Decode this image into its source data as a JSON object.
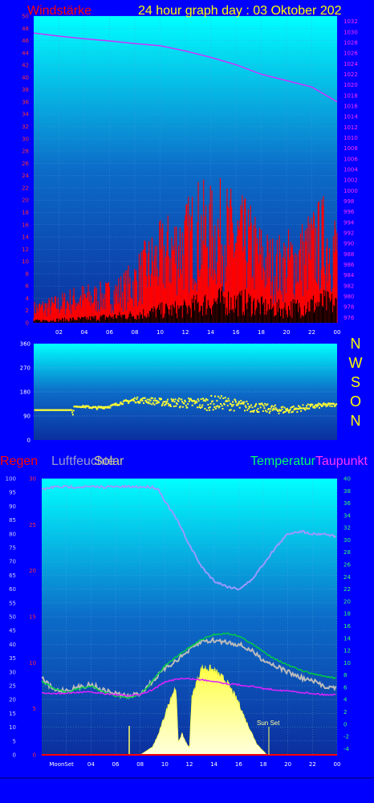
{
  "title": "24 hour graph day : 03 Oktober 202",
  "compass": [
    "N",
    "W",
    "S",
    "O",
    "N"
  ],
  "labels": {
    "wind": "Windstärke",
    "rain": "Regen",
    "humidity": "Luftfeuchte",
    "solar": "Solar",
    "temperature": "Temperatur",
    "dewpoint": "Taupunkt",
    "moonset": "MoonSet",
    "sunset": "Sun Set"
  },
  "colors": {
    "background": "#0000ff",
    "wind_title": "#ff0000",
    "title": "#ffff00",
    "baro_title": "#ff33ff",
    "pressure": "#cc33ff",
    "wind": "#ff0000",
    "gust": "#000000",
    "direction": "#ffff33",
    "rain": "#ff0000",
    "humidity": "#9999ff",
    "solar": "#ffff88",
    "temperature": "#00cc44",
    "dewpoint": "#dd22ff",
    "grey_trace": "#bbbbbb"
  },
  "chart_data": [
    {
      "type": "line",
      "name": "wind-pressure",
      "x_ticks": [
        "02",
        "04",
        "06",
        "08",
        "10",
        "12",
        "14",
        "16",
        "18",
        "20",
        "22",
        "00"
      ],
      "y_left_ticks": [
        "0",
        "2",
        "4",
        "6",
        "8",
        "10",
        "12",
        "14",
        "16",
        "18",
        "20",
        "22",
        "24",
        "26",
        "28",
        "30",
        "32",
        "34",
        "36",
        "38",
        "40",
        "42",
        "44",
        "46",
        "48",
        "50"
      ],
      "y_left_range": [
        0,
        50
      ],
      "y_right_ticks": [
        "976",
        "978",
        "980",
        "982",
        "984",
        "986",
        "988",
        "990",
        "992",
        "994",
        "996",
        "998",
        "1000",
        "1002",
        "1004",
        "1006",
        "1008",
        "1010",
        "1012",
        "1014",
        "1016",
        "1018",
        "1020",
        "1022",
        "1024",
        "1026",
        "1028",
        "1030",
        "1032"
      ],
      "y_right_range": [
        975,
        1033
      ],
      "x_range": [
        0,
        24
      ],
      "pressure": {
        "x": [
          0,
          2,
          4,
          6,
          8,
          10,
          12,
          14,
          16,
          18,
          20,
          22,
          24
        ],
        "y": [
          1029.8,
          1029.2,
          1028.7,
          1028.3,
          1027.8,
          1027.4,
          1026.4,
          1025.2,
          1023.8,
          1022.0,
          1020.8,
          1019.6,
          1016.8
        ]
      },
      "wind_envelope": {
        "x": [
          0,
          2,
          3,
          4,
          5,
          6,
          7,
          8,
          9,
          10,
          11,
          12,
          13,
          14,
          15,
          16,
          17,
          18,
          19,
          20,
          21,
          22,
          23,
          24
        ],
        "y": [
          3,
          4,
          5,
          5.5,
          5.5,
          6,
          7,
          9,
          12,
          14,
          16,
          17,
          20,
          19,
          20,
          18,
          17,
          14,
          12,
          13,
          14,
          16,
          18,
          16
        ]
      },
      "gust_envelope": {
        "x": [
          0,
          4,
          6,
          8,
          10,
          12,
          13,
          14,
          15,
          16,
          17,
          18,
          19,
          20,
          21,
          22,
          23,
          24
        ],
        "y": [
          0.5,
          1,
          1.5,
          2,
          3,
          3.5,
          4.5,
          5,
          5.5,
          5,
          5,
          4,
          3.5,
          3.5,
          4,
          4.5,
          5,
          4.5
        ]
      }
    },
    {
      "type": "scatter",
      "name": "wind-direction",
      "x_range": [
        0,
        24
      ],
      "y_ticks": [
        "0",
        "90",
        "180",
        "270",
        "360"
      ],
      "y_range": [
        0,
        360
      ],
      "base": {
        "x": [
          0,
          2,
          3,
          3.1,
          3.2,
          4,
          5,
          6,
          7,
          8,
          9,
          10,
          11,
          12,
          13,
          14,
          15,
          16,
          17,
          18,
          19,
          20,
          21,
          22,
          23,
          24
        ],
        "y": [
          112,
          112,
          112,
          95,
          125,
          125,
          120,
          125,
          140,
          150,
          148,
          142,
          140,
          138,
          136,
          138,
          140,
          130,
          125,
          120,
          115,
          112,
          118,
          125,
          130,
          133
        ]
      },
      "spread": [
        0,
        0,
        0,
        0,
        0,
        4,
        5,
        5,
        6,
        10,
        12,
        14,
        16,
        20,
        22,
        28,
        25,
        22,
        20,
        18,
        16,
        14,
        12,
        10,
        8,
        6
      ]
    },
    {
      "type": "line",
      "name": "temp-humidity-solar",
      "x_ticks": [
        "MoonSet",
        "04",
        "06",
        "08",
        "10",
        "12",
        "14",
        "16",
        "18",
        "20",
        "22",
        "00"
      ],
      "y_humidity_ticks": [
        "0",
        "5",
        "10",
        "15",
        "20",
        "25",
        "30",
        "35",
        "40",
        "45",
        "50",
        "55",
        "60",
        "65",
        "70",
        "75",
        "80",
        "85",
        "90",
        "95",
        "100"
      ],
      "y_rain_ticks": [
        "0",
        "5",
        "10",
        "15",
        "20",
        "25",
        "30"
      ],
      "y_temp_ticks": [
        "-4",
        "-2",
        "0",
        "2",
        "4",
        "6",
        "8",
        "10",
        "12",
        "14",
        "16",
        "18",
        "20",
        "22",
        "24",
        "26",
        "28",
        "30",
        "32",
        "34",
        "36",
        "38",
        "40"
      ],
      "x_range": [
        0,
        24
      ],
      "humidity": {
        "x": [
          0,
          1,
          2,
          3,
          4,
          5,
          6,
          7,
          8,
          9,
          9.5,
          10,
          11,
          12,
          13,
          14,
          15,
          16,
          17,
          18,
          19,
          20,
          21,
          22,
          23,
          24
        ],
        "y": [
          96,
          97,
          97,
          97,
          97,
          97,
          97,
          97,
          97,
          97,
          96,
          92,
          85,
          76,
          68,
          63,
          61,
          60,
          63,
          69,
          75,
          80,
          81,
          80,
          80,
          79
        ]
      },
      "temperature": {
        "x": [
          0,
          1,
          2,
          3,
          4,
          5,
          6,
          7,
          8,
          9,
          10,
          11,
          12,
          13,
          14,
          15,
          16,
          17,
          18,
          19,
          20,
          21,
          22,
          23,
          24
        ],
        "y": [
          7,
          5.8,
          5.2,
          5.8,
          6.2,
          5.2,
          4.6,
          4.2,
          4.8,
          7,
          9.5,
          11,
          12.5,
          13.8,
          14.6,
          14.8,
          14.4,
          13.2,
          11.8,
          10.6,
          9.6,
          8.8,
          8.2,
          7.8,
          7.4
        ]
      },
      "dewpoint": {
        "x": [
          0,
          1,
          2,
          3,
          4,
          5,
          6,
          7,
          8,
          9,
          10,
          11,
          12,
          13,
          14,
          15,
          16,
          17,
          18,
          19,
          20,
          21,
          22,
          23,
          24
        ],
        "y": [
          5,
          5,
          5,
          5.2,
          5.2,
          5,
          4.8,
          4.6,
          4.8,
          5.6,
          6.8,
          7.4,
          7.4,
          7.2,
          7,
          6.6,
          6.4,
          6.2,
          5.8,
          5.6,
          5.4,
          5.2,
          5,
          4.8,
          4.8
        ]
      },
      "grey_trace": {
        "x": [
          0,
          1,
          2,
          3,
          4,
          5,
          6,
          7,
          8,
          9,
          10,
          11,
          12,
          13,
          14,
          15,
          16,
          17,
          18,
          19,
          20,
          21,
          22,
          23,
          24
        ],
        "y": [
          7.5,
          5.5,
          5.5,
          6,
          6.5,
          5.5,
          5,
          4.5,
          5,
          7,
          9,
          10.5,
          12,
          13.5,
          13.6,
          13.4,
          13,
          12,
          10.5,
          9.5,
          8.5,
          7.6,
          7,
          6.2,
          5.8
        ]
      },
      "solar_envelope": {
        "x": [
          7,
          8,
          9,
          9.5,
          10,
          10.5,
          10.9,
          11.1,
          11.4,
          11.8,
          12,
          12.2,
          12.6,
          13,
          13.5,
          14,
          14.5,
          15,
          15.5,
          16,
          16.5,
          17,
          17.5,
          18,
          18.3
        ],
        "y": [
          0,
          0,
          3,
          8,
          15,
          22,
          26,
          5,
          8,
          4,
          3,
          22,
          28,
          33,
          33,
          32,
          30,
          28,
          24,
          20,
          14,
          9,
          4,
          1.5,
          0
        ]
      },
      "rain_level": 0
    }
  ]
}
